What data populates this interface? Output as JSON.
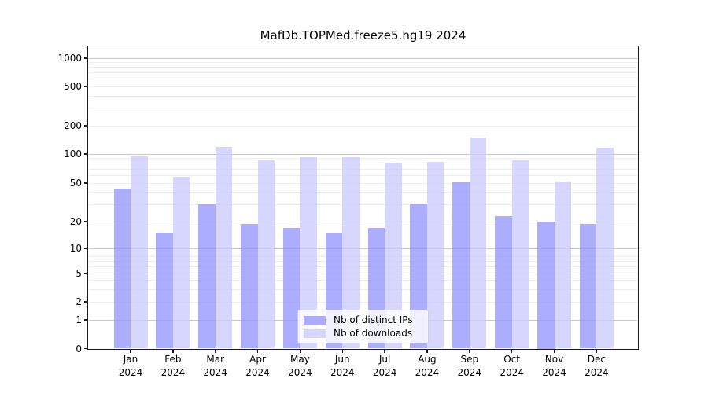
{
  "chart_data": {
    "type": "bar",
    "title": "MafDb.TOPMed.freeze5.hg19 2024",
    "categories": [
      "Jan",
      "Feb",
      "Mar",
      "Apr",
      "May",
      "Jun",
      "Jul",
      "Aug",
      "Sep",
      "Oct",
      "Nov",
      "Dec"
    ],
    "category_year": "2024",
    "series": [
      {
        "name": "Nb of distinct IPs",
        "color": "#9999ff",
        "values": [
          44,
          15,
          30,
          19,
          17,
          15,
          17,
          31,
          51,
          23,
          20,
          19
        ]
      },
      {
        "name": "Nb of downloads",
        "color": "#ccccff",
        "values": [
          94,
          58,
          118,
          86,
          92,
          93,
          82,
          83,
          150,
          86,
          52,
          116
        ]
      }
    ],
    "xlabel": "",
    "ylabel": "",
    "yscale": "symlog",
    "y_ticks": [
      0,
      1,
      2,
      5,
      10,
      20,
      50,
      100,
      200,
      500,
      1000
    ],
    "ylim": [
      0,
      1400
    ],
    "grid": true,
    "legend_position": "lower center"
  }
}
